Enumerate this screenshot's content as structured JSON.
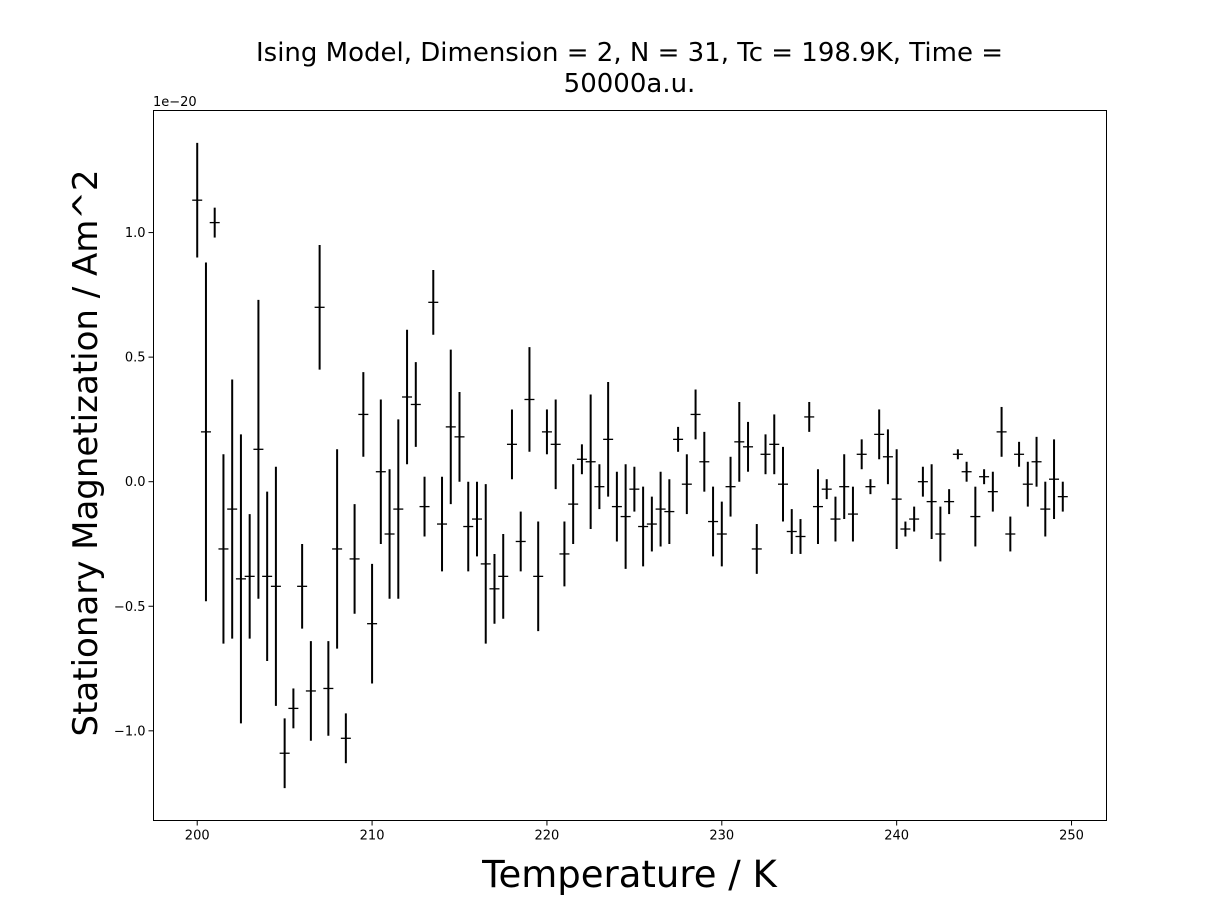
{
  "chart_data": {
    "type": "scatter",
    "title": "Ising Model, Dimension = 2, N = 31, Tc = 198.9K, Time =\n50000a.u.",
    "xlabel": "Temperature / K",
    "ylabel": "Stationary Magnetization / Am^2",
    "y_offset_label": "1e−20",
    "xlim": [
      197.5,
      252
    ],
    "ylim": [
      -1.36,
      1.49
    ],
    "x_ticks": [
      200,
      210,
      220,
      230,
      240,
      250
    ],
    "x_tick_labels": [
      "200",
      "210",
      "220",
      "230",
      "240",
      "250"
    ],
    "y_ticks": [
      -1.0,
      -0.5,
      0.0,
      0.5,
      1.0
    ],
    "y_tick_labels": [
      "−1.0",
      "−0.5",
      "0.0",
      "0.5",
      "1.0"
    ],
    "grid": false,
    "marker": "horizontal tick with vertical error bar",
    "color": "#000000",
    "x": [
      200.0,
      200.5,
      201.0,
      201.5,
      202.0,
      202.5,
      203.0,
      203.5,
      204.0,
      204.5,
      205.0,
      205.5,
      206.0,
      206.5,
      207.0,
      207.5,
      208.0,
      208.5,
      209.0,
      209.5,
      210.0,
      210.5,
      211.0,
      211.5,
      212.0,
      212.5,
      213.0,
      213.5,
      214.0,
      214.5,
      215.0,
      215.5,
      216.0,
      216.5,
      217.0,
      217.5,
      218.0,
      218.5,
      219.0,
      219.5,
      220.0,
      220.5,
      221.0,
      221.5,
      222.0,
      222.5,
      223.0,
      223.5,
      224.0,
      224.5,
      225.0,
      225.5,
      226.0,
      226.5,
      227.0,
      227.5,
      228.0,
      228.5,
      229.0,
      229.5,
      230.0,
      230.5,
      231.0,
      231.5,
      232.0,
      232.5,
      233.0,
      233.5,
      234.0,
      234.5,
      235.0,
      235.5,
      236.0,
      236.5,
      237.0,
      237.5,
      238.0,
      238.5,
      239.0,
      239.5,
      240.0,
      240.5,
      241.0,
      241.5,
      242.0,
      242.5,
      243.0,
      243.5,
      244.0,
      244.5,
      245.0,
      245.5,
      246.0,
      246.5,
      247.0,
      247.5,
      248.0,
      248.5,
      249.0,
      249.5
    ],
    "y": [
      1.13,
      0.2,
      1.04,
      -0.27,
      -0.11,
      -0.39,
      -0.38,
      0.13,
      -0.38,
      -0.42,
      -1.09,
      -0.91,
      -0.42,
      -0.84,
      0.7,
      -0.83,
      -0.27,
      -1.03,
      -0.31,
      0.27,
      -0.57,
      0.04,
      -0.21,
      -0.11,
      0.34,
      0.31,
      -0.1,
      0.72,
      -0.17,
      0.22,
      0.18,
      -0.18,
      -0.15,
      -0.33,
      -0.43,
      -0.38,
      0.15,
      -0.24,
      0.33,
      -0.38,
      0.2,
      0.15,
      -0.29,
      -0.09,
      0.09,
      0.08,
      -0.02,
      0.17,
      -0.1,
      -0.14,
      -0.03,
      -0.18,
      -0.17,
      -0.11,
      -0.12,
      0.17,
      -0.01,
      0.27,
      0.08,
      -0.16,
      -0.21,
      -0.02,
      0.16,
      0.14,
      -0.27,
      0.11,
      0.15,
      -0.01,
      -0.2,
      -0.22,
      0.26,
      -0.1,
      -0.03,
      -0.15,
      -0.02,
      -0.13,
      0.11,
      -0.02,
      0.19,
      0.1,
      -0.07,
      -0.19,
      -0.15,
      0.0,
      -0.08,
      -0.21,
      -0.08,
      0.11,
      0.04,
      -0.14,
      0.02,
      -0.04,
      0.2,
      -0.21,
      0.11,
      -0.01,
      0.08,
      -0.11,
      0.01,
      -0.06
    ],
    "yerr": [
      0.23,
      0.68,
      0.06,
      0.38,
      0.52,
      0.58,
      0.25,
      0.6,
      0.34,
      0.48,
      0.14,
      0.08,
      0.17,
      0.2,
      0.25,
      0.19,
      0.4,
      0.1,
      0.22,
      0.17,
      0.24,
      0.29,
      0.26,
      0.36,
      0.27,
      0.17,
      0.12,
      0.13,
      0.19,
      0.31,
      0.18,
      0.18,
      0.15,
      0.32,
      0.14,
      0.17,
      0.14,
      0.12,
      0.21,
      0.22,
      0.09,
      0.18,
      0.13,
      0.16,
      0.06,
      0.27,
      0.09,
      0.23,
      0.14,
      0.21,
      0.09,
      0.16,
      0.11,
      0.15,
      0.13,
      0.05,
      0.12,
      0.1,
      0.12,
      0.14,
      0.13,
      0.12,
      0.16,
      0.1,
      0.1,
      0.08,
      0.12,
      0.15,
      0.09,
      0.07,
      0.06,
      0.15,
      0.04,
      0.09,
      0.13,
      0.11,
      0.06,
      0.03,
      0.1,
      0.11,
      0.2,
      0.03,
      0.05,
      0.06,
      0.15,
      0.11,
      0.05,
      0.02,
      0.04,
      0.12,
      0.03,
      0.08,
      0.1,
      0.07,
      0.05,
      0.09,
      0.1,
      0.11,
      0.16,
      0.06
    ]
  }
}
